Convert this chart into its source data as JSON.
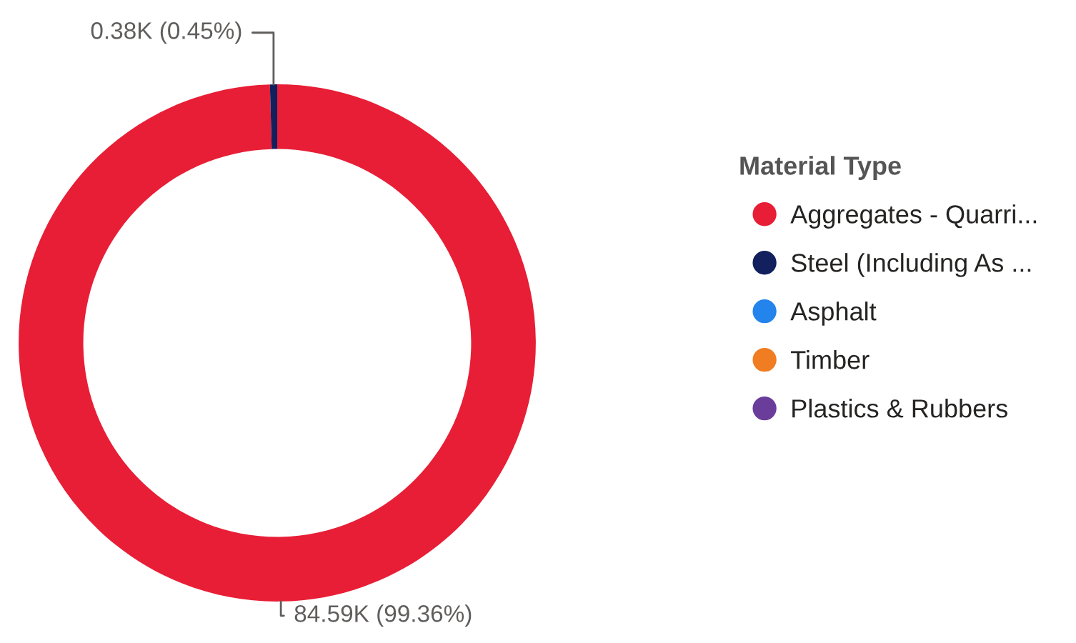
{
  "chart_data": {
    "type": "donut",
    "legend_title": "Material Type",
    "categories": [
      "Aggregates - Quarri...",
      "Steel (Including As ...",
      "Asphalt",
      "Timber",
      "Plastics & Rubbers"
    ],
    "values": [
      99.36,
      0.45,
      null,
      null,
      null
    ],
    "value_labels": [
      "84.59K (99.36%)",
      "0.38K (0.45%)",
      null,
      null,
      null
    ],
    "colors": [
      "#e81e36",
      "#12205e",
      "#2384ec",
      "#f07d22",
      "#6b3d9b"
    ],
    "legend": "right"
  }
}
